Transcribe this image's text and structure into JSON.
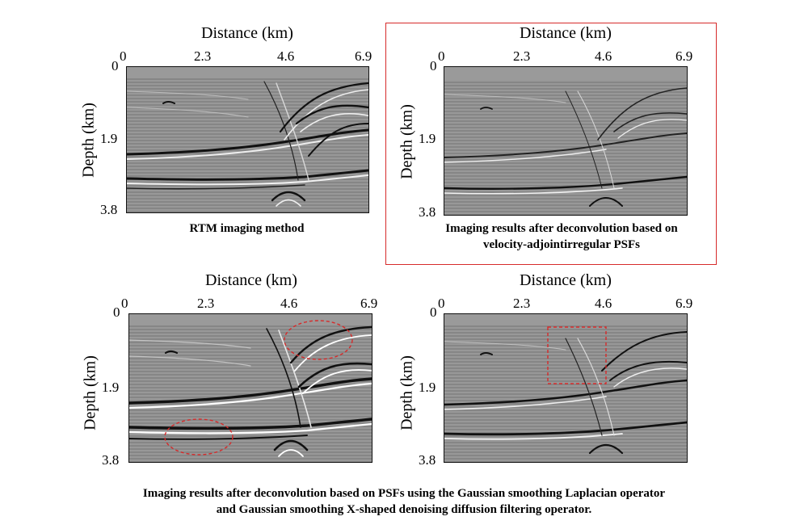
{
  "panels": [
    {
      "id": "rtm",
      "x_title": "Distance (km)",
      "y_title": "Depth (km)",
      "x_ticks": [
        "0",
        "2.3",
        "4.6",
        "6.9"
      ],
      "y_ticks": [
        "0",
        "1.9",
        "3.8"
      ],
      "caption_lines": [
        "RTM imaging method"
      ],
      "highlighted": false,
      "annotations": []
    },
    {
      "id": "velocity-adjoint",
      "x_title": "Distance (km)",
      "y_title": "Depth (km)",
      "x_ticks": [
        "0",
        "2.3",
        "4.6",
        "6.9"
      ],
      "y_ticks": [
        "0",
        "1.9",
        "3.8"
      ],
      "caption_lines": [
        "Imaging results after deconvolution based on",
        "velocity-adjointirregular PSFs"
      ],
      "highlighted": true,
      "annotations": []
    },
    {
      "id": "gaussian-laplacian",
      "x_title": "Distance (km)",
      "y_title": "Depth (km)",
      "x_ticks": [
        "0",
        "2.3",
        "4.6",
        "6.9"
      ],
      "y_ticks": [
        "0",
        "1.9",
        "3.8"
      ],
      "caption_lines": [],
      "highlighted": false,
      "annotations": [
        "dashed-ellipse",
        "dashed-ellipse"
      ]
    },
    {
      "id": "gaussian-x-shaped",
      "x_title": "Distance (km)",
      "y_title": "Depth (km)",
      "x_ticks": [
        "0",
        "2.3",
        "4.6",
        "6.9"
      ],
      "y_ticks": [
        "0",
        "1.9",
        "3.8"
      ],
      "caption_lines": [],
      "highlighted": false,
      "annotations": [
        "dashed-rectangle"
      ]
    }
  ],
  "bottom_caption": {
    "line1": "Imaging results after deconvolution based on PSFs using the Gaussian smoothing Laplacian operator",
    "line2": "and Gaussian smoothing X-shaped denoising diffusion filtering operator."
  },
  "colors": {
    "highlight": "#d62a2a",
    "seismic_background": "#8e8e8e"
  }
}
